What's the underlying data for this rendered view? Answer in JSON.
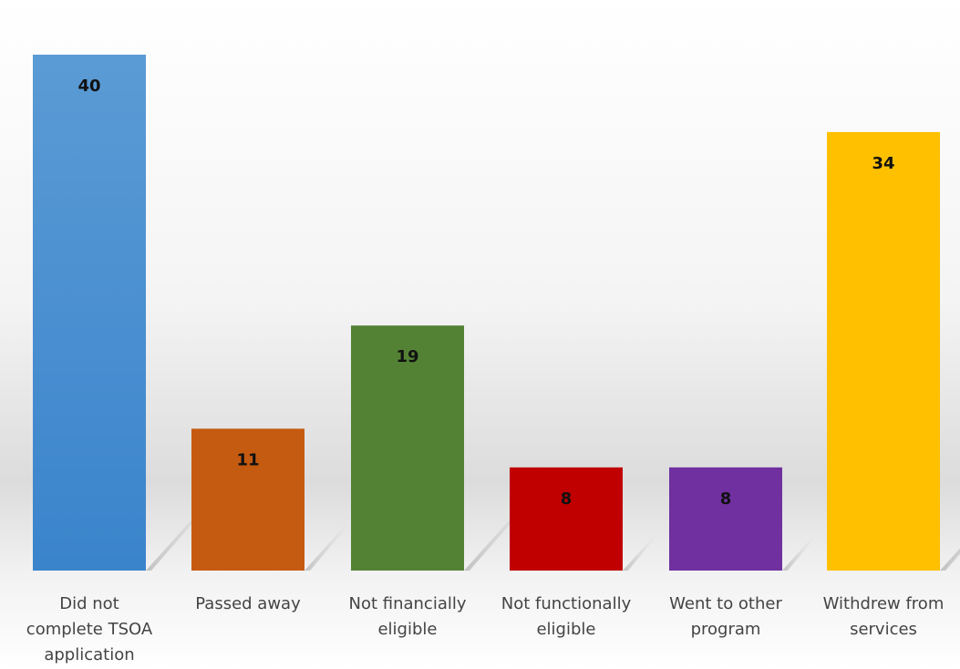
{
  "chart_data": {
    "type": "bar",
    "title": "",
    "xlabel": "",
    "ylabel": "",
    "ylim": [
      0,
      40
    ],
    "grid": false,
    "legend": "none",
    "categories": [
      [
        "Did not",
        "complete TSOA",
        "application"
      ],
      [
        "Passed away"
      ],
      [
        "Not financially",
        "eligible"
      ],
      [
        "Not functionally",
        "eligible"
      ],
      [
        "Went to other",
        "program"
      ],
      [
        "Withdrew from",
        "services"
      ]
    ],
    "values": [
      40,
      11,
      19,
      8,
      8,
      34
    ],
    "data_labels": [
      "40",
      "11",
      "19",
      "8",
      "8",
      "34"
    ],
    "colors": [
      "#4a90d9",
      "#c55a11",
      "#548235",
      "#c00000",
      "#7030a0",
      "#ffc000"
    ]
  }
}
